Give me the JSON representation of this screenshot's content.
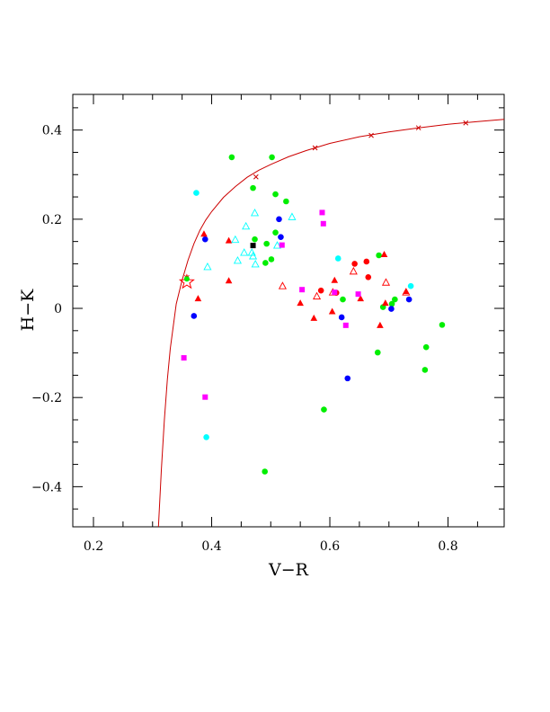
{
  "chart_data": {
    "type": "scatter",
    "title": "",
    "xlabel": "V−R",
    "ylabel": "H−K",
    "xlim": [
      0.165,
      0.895
    ],
    "ylim": [
      -0.49,
      0.48
    ],
    "grid": false,
    "legend": "none",
    "x_ticks": [
      {
        "value": 0.2,
        "label": "0.2"
      },
      {
        "value": 0.4,
        "label": "0.4"
      },
      {
        "value": 0.6,
        "label": "0.6"
      },
      {
        "value": 0.8,
        "label": "0.8"
      }
    ],
    "y_ticks": [
      {
        "value": -0.4,
        "label": "−0.4"
      },
      {
        "value": -0.2,
        "label": "−0.2"
      },
      {
        "value": 0,
        "label": "0"
      },
      {
        "value": 0.2,
        "label": "0.2"
      },
      {
        "value": 0.4,
        "label": "0.4"
      }
    ],
    "curve": {
      "color": "#cc0000",
      "x": [
        0.31,
        0.315,
        0.32,
        0.325,
        0.33,
        0.34,
        0.35,
        0.36,
        0.37,
        0.38,
        0.39,
        0.4,
        0.42,
        0.44,
        0.46,
        0.48,
        0.5,
        0.53,
        0.56,
        0.6,
        0.65,
        0.7,
        0.75,
        0.8,
        0.85,
        0.895
      ],
      "y": [
        -0.49,
        -0.36,
        -0.25,
        -0.16,
        -0.09,
        0.01,
        0.063,
        0.108,
        0.145,
        0.175,
        0.198,
        0.217,
        0.249,
        0.273,
        0.294,
        0.31,
        0.323,
        0.34,
        0.354,
        0.37,
        0.385,
        0.396,
        0.405,
        0.413,
        0.419,
        0.424
      ],
      "markers_x": [
        0.358,
        0.475,
        0.575,
        0.67,
        0.75,
        0.83
      ],
      "markers_y": [
        0.069,
        0.295,
        0.36,
        0.388,
        0.405,
        0.416
      ]
    },
    "series": [
      {
        "marker": "filled-circle",
        "color": "#00ee00",
        "x": [
          0.434,
          0.502,
          0.47,
          0.508,
          0.526,
          0.473,
          0.508,
          0.493,
          0.501,
          0.491,
          0.622,
          0.705,
          0.69,
          0.71,
          0.683,
          0.681,
          0.79,
          0.763,
          0.761,
          0.59,
          0.49
        ],
        "y": [
          0.339,
          0.339,
          0.27,
          0.256,
          0.24,
          0.155,
          0.17,
          0.145,
          0.11,
          0.102,
          0.02,
          0.01,
          0.003,
          0.02,
          0.119,
          -0.099,
          -0.037,
          -0.087,
          -0.138,
          -0.227,
          -0.366
        ]
      },
      {
        "marker": "filled-circle",
        "color": "#00ffff",
        "x": [
          0.374,
          0.614,
          0.737,
          0.391
        ],
        "y": [
          0.259,
          0.112,
          0.05,
          -0.289
        ]
      },
      {
        "marker": "filled-circle",
        "color": "#0000ff",
        "x": [
          0.389,
          0.514,
          0.517,
          0.37,
          0.62,
          0.734,
          0.704,
          0.63
        ],
        "y": [
          0.155,
          0.2,
          0.16,
          -0.017,
          -0.02,
          0.02,
          -0.001,
          -0.157
        ]
      },
      {
        "marker": "filled-circle",
        "color": "#ff0000",
        "x": [
          0.585,
          0.611,
          0.642,
          0.662,
          0.665
        ],
        "y": [
          0.04,
          0.035,
          0.1,
          0.105,
          0.07
        ]
      },
      {
        "marker": "filled-triangle",
        "color": "#ff0000",
        "x": [
          0.387,
          0.429,
          0.429,
          0.377,
          0.55,
          0.573,
          0.604,
          0.608,
          0.652,
          0.685,
          0.692,
          0.694,
          0.729
        ],
        "y": [
          0.167,
          0.152,
          0.062,
          0.022,
          0.012,
          -0.022,
          -0.007,
          0.063,
          0.022,
          -0.038,
          0.121,
          0.012,
          0.038
        ]
      },
      {
        "marker": "open-triangle",
        "color": "#ff0000",
        "x": [
          0.52,
          0.578,
          0.605,
          0.64,
          0.695,
          0.729
        ],
        "y": [
          0.05,
          0.027,
          0.036,
          0.083,
          0.058,
          0.036
        ]
      },
      {
        "marker": "open-triangle",
        "color": "#00ffff",
        "x": [
          0.473,
          0.458,
          0.44,
          0.393,
          0.536,
          0.455,
          0.468,
          0.444,
          0.47,
          0.474,
          0.511
        ],
        "y": [
          0.214,
          0.184,
          0.154,
          0.093,
          0.205,
          0.125,
          0.125,
          0.107,
          0.117,
          0.099,
          0.141
        ]
      },
      {
        "marker": "filled-square",
        "color": "#ff00ff",
        "x": [
          0.587,
          0.589,
          0.519,
          0.553,
          0.608,
          0.648,
          0.627,
          0.353,
          0.389
        ],
        "y": [
          0.215,
          0.19,
          0.142,
          0.042,
          0.036,
          0.032,
          -0.038,
          -0.111,
          -0.199
        ]
      },
      {
        "marker": "filled-square",
        "color": "#000000",
        "x": [
          0.47
        ],
        "y": [
          0.141
        ]
      },
      {
        "marker": "star",
        "color": "#ff0000",
        "x": [
          0.358
        ],
        "y": [
          0.059
        ]
      },
      {
        "marker": "filled-circle-small",
        "color": "#00ee00",
        "x": [
          0.358
        ],
        "y": [
          0.066
        ]
      }
    ]
  }
}
